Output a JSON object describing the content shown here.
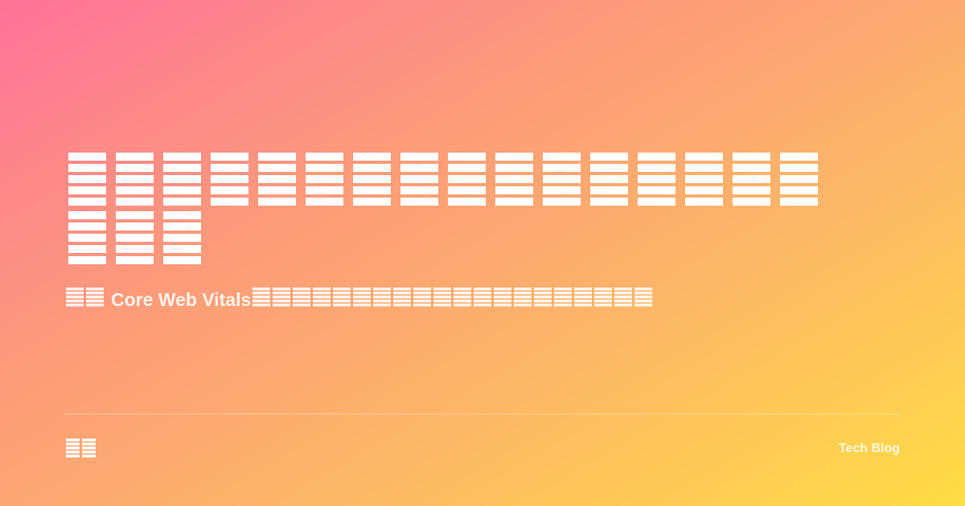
{
  "subtitle": {
    "text": "Core Web Vitals"
  },
  "footer": {
    "brand": "Tech Blog"
  },
  "colors": {
    "gradient_start": "#fe7399",
    "gradient_end": "#ffdd44",
    "text": "#ffffff"
  },
  "icons": {
    "title_glyphs": "missing-glyph-icon",
    "logo": "missing-glyph-icon"
  }
}
